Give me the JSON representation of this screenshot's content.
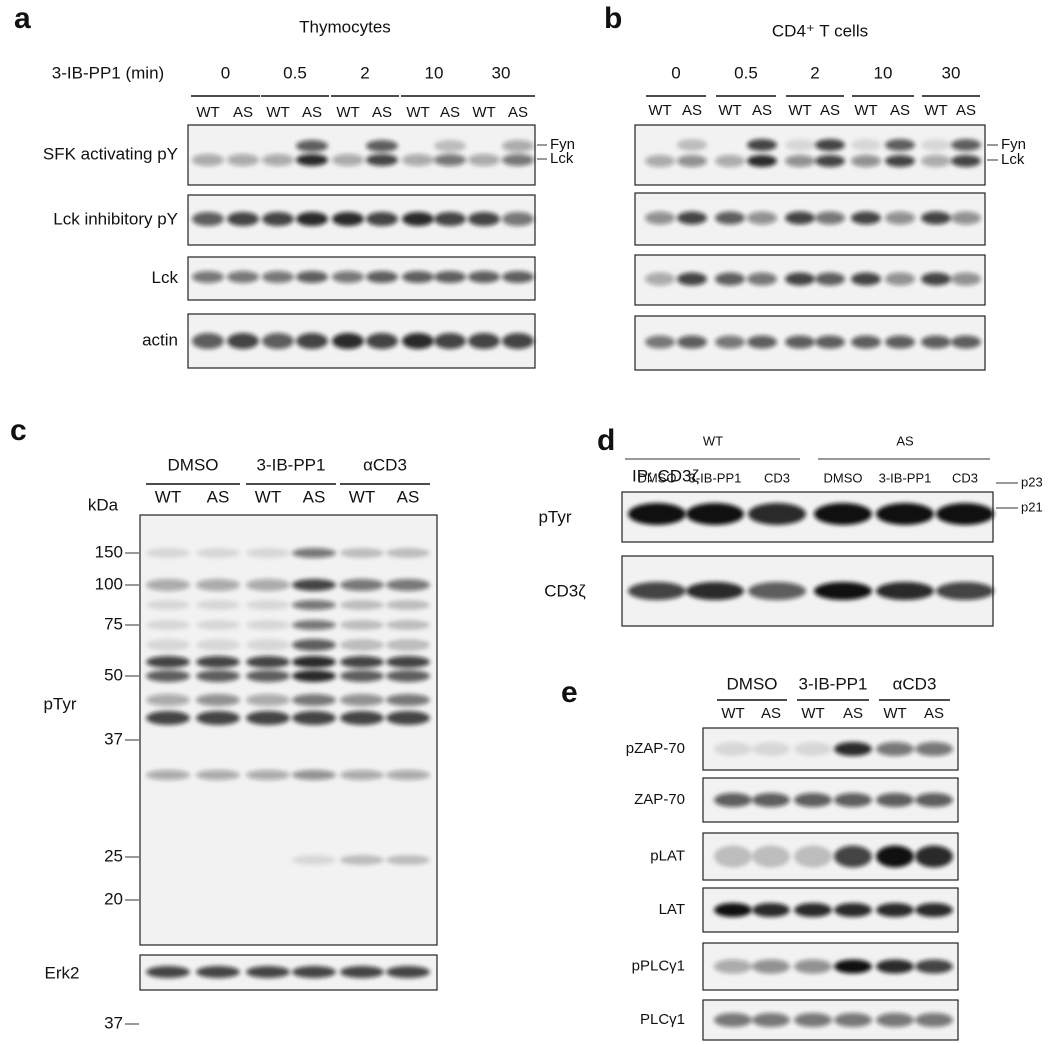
{
  "panel_a": {
    "letter": "a",
    "title": "Thymocytes",
    "treatment": "3-IB-PP1 (min)",
    "times": [
      0,
      0.5,
      2,
      10,
      30
    ],
    "lanes": [
      "WT",
      "AS",
      "WT",
      "AS",
      "WT",
      "AS",
      "WT",
      "AS",
      "WT",
      "AS"
    ],
    "rows": [
      "SFK activating pY",
      "Lck inhibitory pY",
      "Lck",
      "actin"
    ],
    "bands": [
      "Fyn",
      "Lck"
    ]
  },
  "panel_b": {
    "letter": "b",
    "title": "CD4⁺ T cells",
    "times": [
      0,
      0.5,
      2,
      10,
      30
    ],
    "lanes": [
      "WT",
      "AS",
      "WT",
      "AS",
      "WT",
      "AS",
      "WT",
      "AS",
      "WT",
      "AS"
    ],
    "bands": [
      "Fyn",
      "Lck"
    ]
  },
  "panel_c": {
    "letter": "c",
    "groups": [
      "DMSO",
      "3-IB-PP1",
      "αCD3"
    ],
    "lanes": [
      "WT",
      "AS",
      "WT",
      "AS",
      "WT",
      "AS"
    ],
    "unit": "kDa",
    "markers": [
      150,
      100,
      75,
      50,
      37,
      25,
      20
    ],
    "blot_label": "pTyr",
    "loading_label": "Erk2",
    "loading_marker": 37
  },
  "panel_d": {
    "letter": "d",
    "genotypes": [
      "WT",
      "AS"
    ],
    "ip": "IP: CD3ζ",
    "lanes": [
      "DMSO",
      "3-IB-PP1",
      "CD3",
      "DMSO",
      "3-IB-PP1",
      "CD3"
    ],
    "rows": [
      "pTyr",
      "CD3ζ"
    ],
    "bands": [
      "p23",
      "p21"
    ]
  },
  "panel_e": {
    "letter": "e",
    "groups": [
      "DMSO",
      "3-IB-PP1",
      "αCD3"
    ],
    "lanes": [
      "WT",
      "AS",
      "WT",
      "AS",
      "WT",
      "AS"
    ],
    "rows": [
      "pZAP-70",
      "ZAP-70",
      "pLAT",
      "LAT",
      "pPLCγ1",
      "PLCγ1"
    ]
  }
}
